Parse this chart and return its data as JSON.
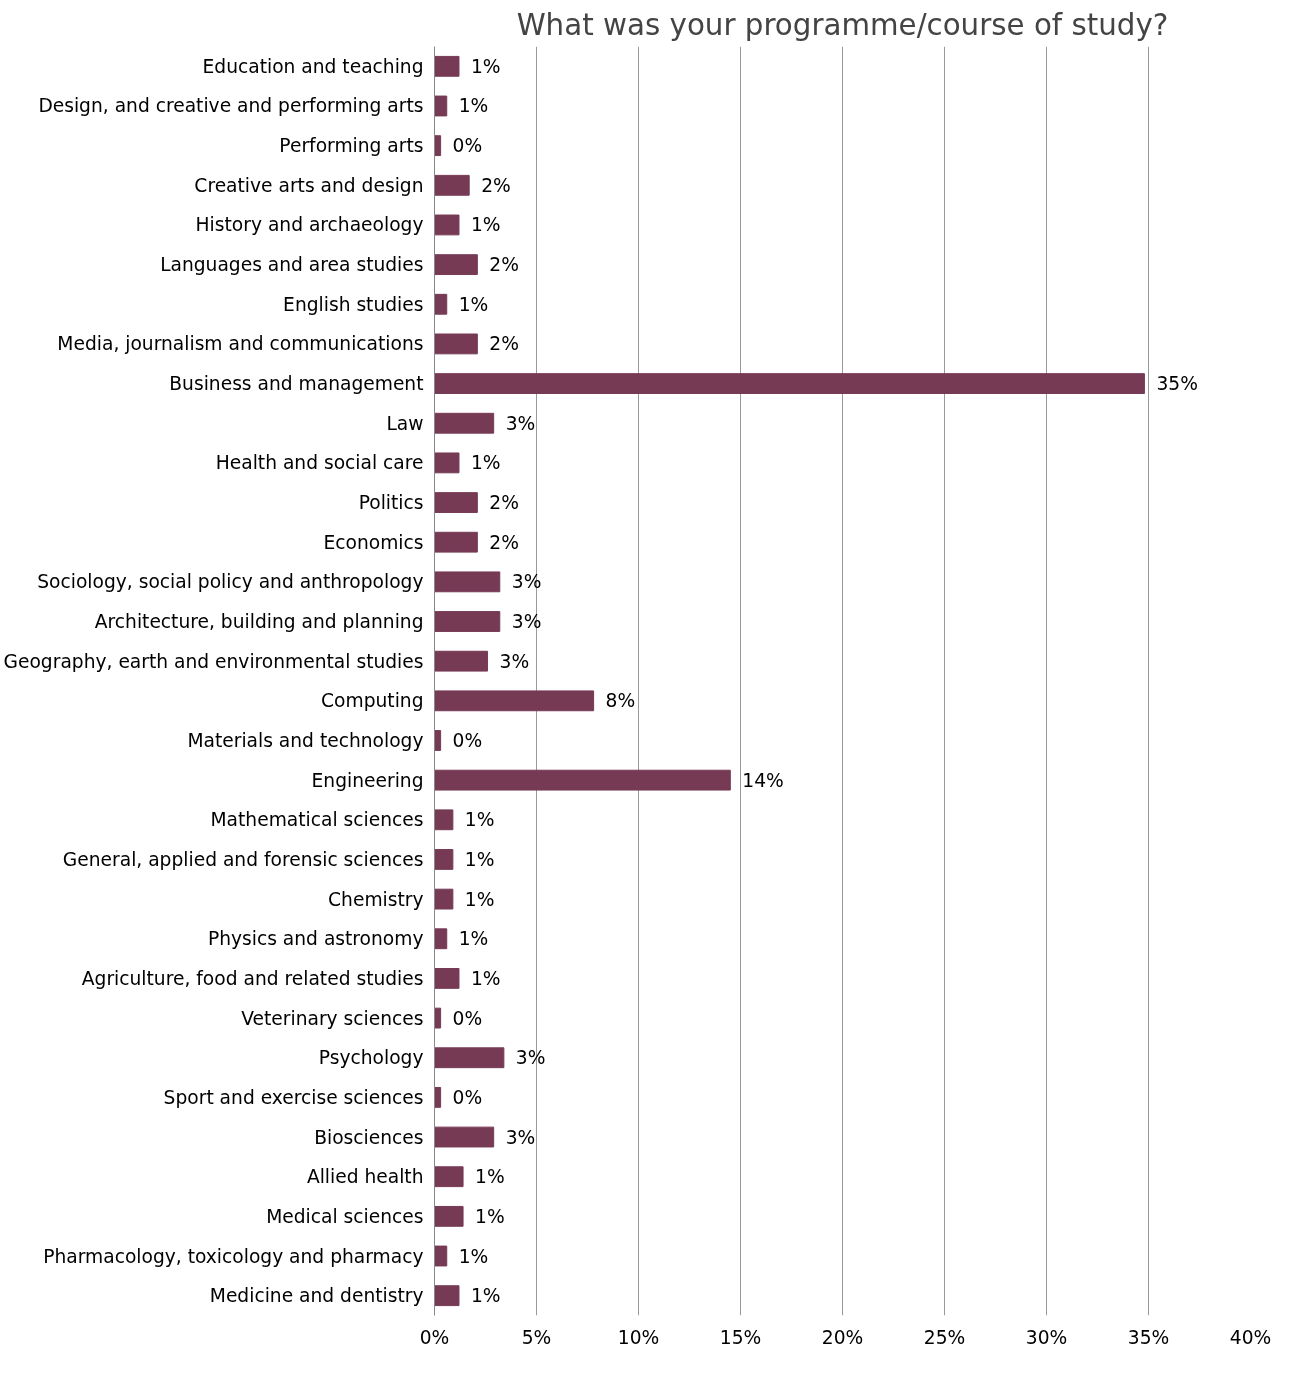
{
  "chart_data": {
    "type": "bar",
    "orientation": "horizontal",
    "title": "What was your programme/course of study?",
    "categories": [
      "Education and teaching",
      "Design, and creative and performing arts",
      "Performing arts",
      "Creative arts and design",
      "History and archaeology",
      "Languages and area studies",
      "English studies",
      "Media, journalism and communications",
      "Business and management",
      "Law",
      "Health and social care",
      "Politics",
      "Economics",
      "Sociology, social policy and anthropology",
      "Architecture, building and planning",
      "Geography, earth and environmental studies",
      "Computing",
      "Materials and technology",
      "Engineering",
      "Mathematical sciences",
      "General, applied and forensic sciences",
      "Chemistry",
      "Physics and astronomy",
      "Agriculture, food and related studies",
      "Veterinary sciences",
      "Psychology",
      "Sport and exercise sciences",
      "Biosciences",
      "Allied health",
      "Medical sciences",
      "Pharmacology, toxicology and pharmacy",
      "Medicine and dentistry"
    ],
    "values": [
      1.2,
      0.6,
      0.3,
      1.7,
      1.2,
      2.1,
      0.6,
      2.1,
      34.8,
      2.9,
      1.2,
      2.1,
      2.1,
      3.2,
      3.2,
      2.6,
      7.8,
      0.3,
      14.5,
      0.9,
      0.9,
      0.9,
      0.6,
      1.2,
      0.3,
      3.4,
      0.3,
      2.9,
      1.4,
      1.4,
      0.6,
      1.2
    ],
    "value_labels": [
      "1%",
      "1%",
      "0%",
      "2%",
      "1%",
      "2%",
      "1%",
      "2%",
      "35%",
      "3%",
      "1%",
      "2%",
      "2%",
      "3%",
      "3%",
      "3%",
      "8%",
      "0%",
      "14%",
      "1%",
      "1%",
      "1%",
      "1%",
      "1%",
      "0%",
      "3%",
      "0%",
      "3%",
      "1%",
      "1%",
      "1%",
      "1%"
    ],
    "color": "#763a55",
    "xlim": [
      0,
      40
    ],
    "xticks": [
      {
        "value": 0,
        "label": "0%"
      },
      {
        "value": 5,
        "label": "5%"
      },
      {
        "value": 10,
        "label": "10%"
      },
      {
        "value": 15,
        "label": "15%"
      },
      {
        "value": 20,
        "label": "20%"
      },
      {
        "value": 25,
        "label": "25%"
      },
      {
        "value": 30,
        "label": "30%"
      },
      {
        "value": 35,
        "label": "35%"
      },
      {
        "value": 40,
        "label": "40%"
      }
    ],
    "grid": "x"
  }
}
